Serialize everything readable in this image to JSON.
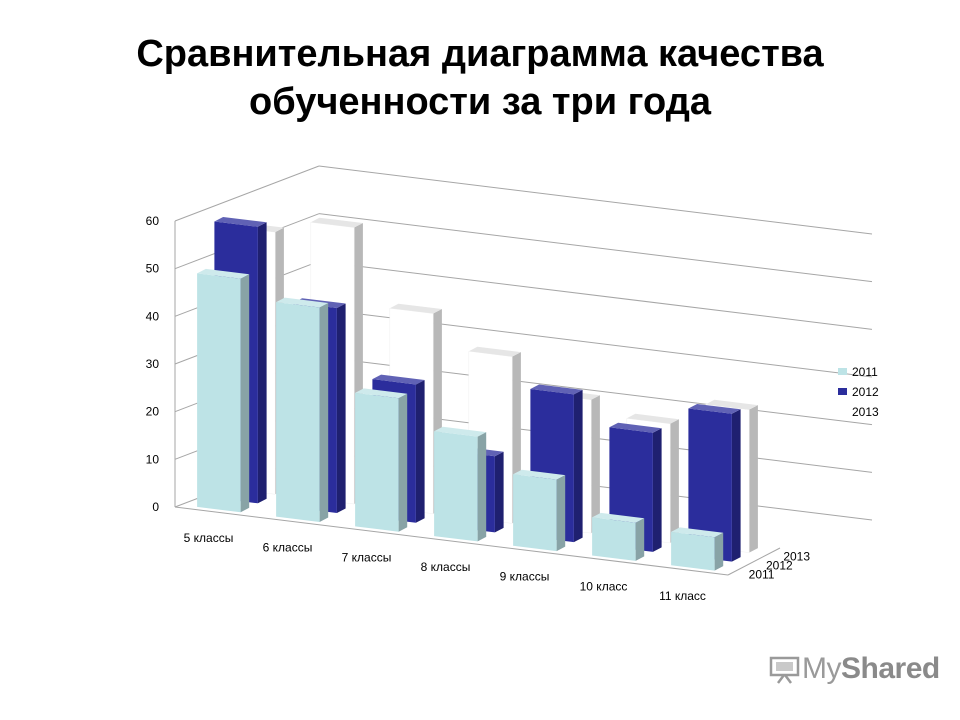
{
  "title_line1": "Сравнительная диаграмма качества",
  "title_line2": "обученности за три года",
  "watermark": {
    "prefix": "My",
    "suffix": "Shared"
  },
  "chart_data": {
    "type": "bar",
    "categories": [
      "5 классы",
      "6 классы",
      "7 классы",
      "8 классы",
      "9 классы",
      "10 класс",
      "11 класс"
    ],
    "series": [
      {
        "name": "2011",
        "values": [
          49,
          45,
          28,
          22,
          15,
          8,
          7
        ],
        "color": "#bde3e6"
      },
      {
        "name": "2012",
        "values": [
          58,
          43,
          29,
          16,
          31,
          25,
          31
        ],
        "color": "#2b2d9c"
      },
      {
        "name": "2013",
        "values": [
          55,
          58,
          42,
          35,
          28,
          25,
          30
        ],
        "color": "#ffffff"
      }
    ],
    "y_ticks": [
      "0",
      "10",
      "20",
      "30",
      "40",
      "50",
      "60"
    ],
    "ylim": [
      0,
      60
    ],
    "depth_labels": [
      "2011",
      "2012",
      "2013"
    ],
    "grid": true,
    "legend_position": "right"
  }
}
